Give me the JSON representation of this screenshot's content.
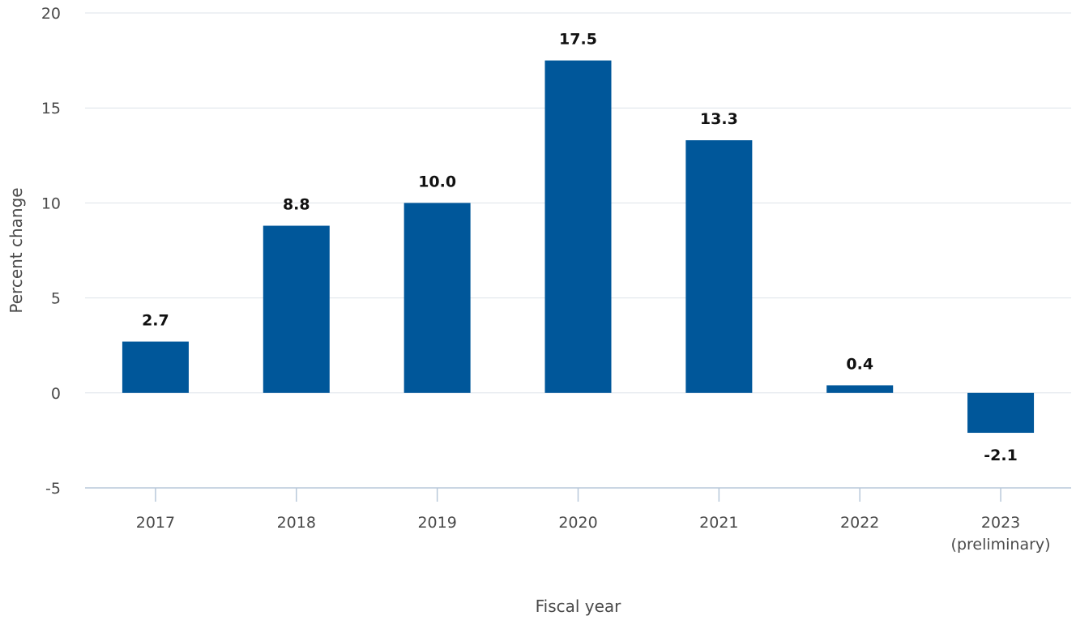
{
  "chart_data": {
    "type": "bar",
    "categories": [
      "2017",
      "2018",
      "2019",
      "2020",
      "2021",
      "2022",
      "2023\n(preliminary)"
    ],
    "values": [
      2.7,
      8.8,
      10.0,
      17.5,
      13.3,
      0.4,
      -2.1
    ],
    "value_labels": [
      "2.7",
      "8.8",
      "10.0",
      "17.5",
      "13.3",
      "0.4",
      "-2.1"
    ],
    "ylabel": "Percent change",
    "xlabel": "Fiscal year",
    "ylim": [
      -5,
      20
    ],
    "yticks": [
      -5,
      0,
      5,
      10,
      15,
      20
    ],
    "grid": true,
    "colors": {
      "bar": "#00579a",
      "grid": "#dde3ea",
      "axis": "#b8c8da"
    }
  }
}
